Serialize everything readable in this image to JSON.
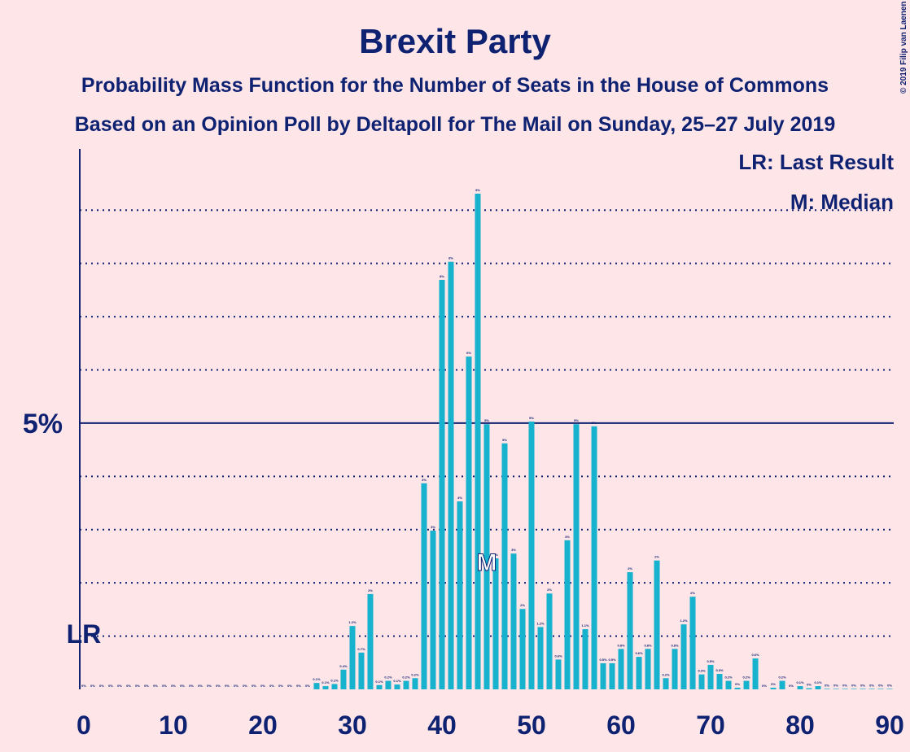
{
  "chart_data": {
    "type": "bar",
    "title": "Brexit Party",
    "subtitle": "Probability Mass Function for the Number of Seats in the House of Commons",
    "subtitle2": "Based on an Opinion Poll by Deltapoll for The Mail on Sunday, 25–27 July 2019",
    "copyright": "© 2019 Filip van Laenen",
    "legend": [
      "LR: Last Result",
      "M: Median"
    ],
    "last_result": {
      "seat": 0,
      "label": "LR"
    },
    "median": {
      "seat": 45,
      "label": "M"
    },
    "color": "#17b2cd",
    "x": [
      0,
      1,
      2,
      3,
      4,
      5,
      6,
      7,
      8,
      9,
      10,
      11,
      12,
      13,
      14,
      15,
      16,
      17,
      18,
      19,
      20,
      21,
      22,
      23,
      24,
      25,
      26,
      27,
      28,
      29,
      30,
      31,
      32,
      33,
      34,
      35,
      36,
      37,
      38,
      39,
      40,
      41,
      42,
      43,
      44,
      45,
      46,
      47,
      48,
      49,
      50,
      51,
      52,
      53,
      54,
      55,
      56,
      57,
      58,
      59,
      60,
      61,
      62,
      63,
      64,
      65,
      66,
      67,
      68,
      69,
      70,
      71,
      72,
      73,
      74,
      75,
      76,
      77,
      78,
      79,
      80,
      81,
      82,
      83,
      84,
      85,
      86,
      87,
      88,
      89,
      90
    ],
    "values": [
      0,
      0,
      0,
      0,
      0,
      0,
      0,
      0,
      0,
      0,
      0,
      0,
      0,
      0,
      0,
      0,
      0,
      0,
      0,
      0,
      0,
      0,
      0,
      0,
      0,
      0,
      0.12,
      0.06,
      0.1,
      0.37,
      1.19,
      0.69,
      1.79,
      0.08,
      0.16,
      0.09,
      0.16,
      0.21,
      3.87,
      2.98,
      7.69,
      8.03,
      3.53,
      6.25,
      9.31,
      4.98,
      2.46,
      4.62,
      2.55,
      1.51,
      5.03,
      1.17,
      1.8,
      0.56,
      2.8,
      4.98,
      1.13,
      4.94,
      0.49,
      0.49,
      0.76,
      2.2,
      0.61,
      0.76,
      2.42,
      0.21,
      0.76,
      1.22,
      1.74,
      0.28,
      0.46,
      0.29,
      0.16,
      0.03,
      0.16,
      0.58,
      0,
      0.03,
      0.16,
      0,
      0.06,
      0.02,
      0.06,
      0.01,
      0.01,
      0.01,
      0.01,
      0.01,
      0.01,
      0.01,
      0.01
    ],
    "value_labels": [
      "0%",
      "0%",
      "0%",
      "0%",
      "0%",
      "0%",
      "0%",
      "0%",
      "0%",
      "0%",
      "0%",
      "0%",
      "0%",
      "0%",
      "0%",
      "0%",
      "0%",
      "0%",
      "0%",
      "0%",
      "0%",
      "0%",
      "0%",
      "0%",
      "0%",
      "0%",
      "0.1%",
      "0.1%",
      "0.1%",
      "0.4%",
      "1.2%",
      "0.7%",
      "2%",
      "0.1%",
      "0.2%",
      "0.1%",
      "0.2%",
      "0.2%",
      "4%",
      "3%",
      "8%",
      "8%",
      "4%",
      "6%",
      "9%",
      "5%",
      "2%",
      "5%",
      "3%",
      "2%",
      "5%",
      "1.2%",
      "2%",
      "0.6%",
      "3%",
      "5%",
      "1.1%",
      "5%",
      "0.5%",
      "0.5%",
      "0.8%",
      "2%",
      "0.6%",
      "0.8%",
      "2%",
      "0.2%",
      "0.8%",
      "1.2%",
      "2%",
      "0.3%",
      "0.5%",
      "0.3%",
      "0.2%",
      "0%",
      "0.2%",
      "0.6%",
      "0%",
      "0%",
      "0.2%",
      "0%",
      "0.1%",
      "0%",
      "0.1%",
      "0%",
      "0%",
      "0%",
      "0%",
      "0%",
      "0%",
      "0%",
      "0%"
    ],
    "xlim": [
      -0.45,
      90.45
    ],
    "xticks": [
      0,
      10,
      20,
      30,
      40,
      50,
      60,
      70,
      80,
      90
    ],
    "ylim": [
      0,
      10.15
    ],
    "yticks": [
      {
        "value": 5,
        "label": "5%"
      }
    ],
    "minor_gridlines": [
      1,
      2,
      3,
      4,
      6,
      7,
      8,
      9
    ]
  }
}
